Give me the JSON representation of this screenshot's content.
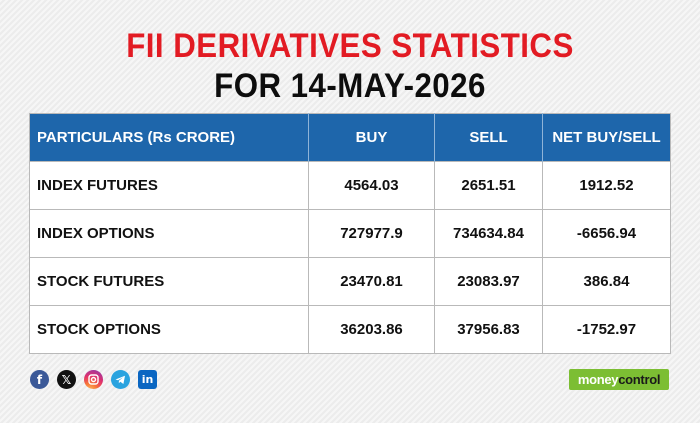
{
  "title": {
    "line1": "FII DERIVATIVES STATISTICS",
    "line2": "FOR 14-MAY-2026"
  },
  "table": {
    "headers": [
      "PARTICULARS (Rs CRORE)",
      "BUY",
      "SELL",
      "NET BUY/SELL"
    ],
    "rows": [
      [
        "INDEX FUTURES",
        "4564.03",
        "2651.51",
        "1912.52"
      ],
      [
        "INDEX OPTIONS",
        "727977.9",
        "734634.84",
        "-6656.94"
      ],
      [
        "STOCK FUTURES",
        "23470.81",
        "23083.97",
        "386.84"
      ],
      [
        "STOCK OPTIONS",
        "36203.86",
        "37956.83",
        "-1752.97"
      ]
    ]
  },
  "social_icons": [
    "facebook-icon",
    "x-icon",
    "instagram-icon",
    "telegram-icon",
    "linkedin-icon"
  ],
  "brand": {
    "part1": "money",
    "part2": "control"
  },
  "colors": {
    "title_red": "#e21b23",
    "header_blue": "#1e66ab",
    "brand_green": "#7cbe33"
  }
}
